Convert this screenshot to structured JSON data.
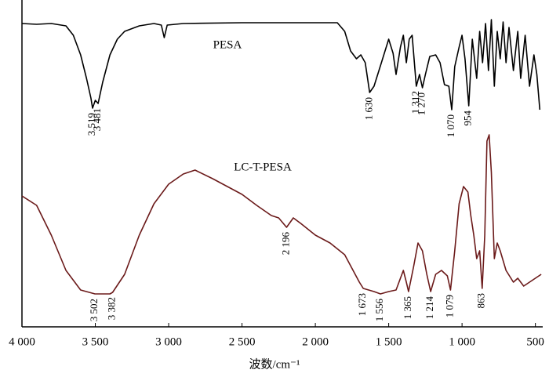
{
  "chart_data": {
    "type": "line",
    "xlabel": "波数/cm⁻¹",
    "xlim": [
      4000,
      450
    ],
    "xticks": [
      {
        "value": 4000,
        "label": "4 000"
      },
      {
        "value": 3500,
        "label": "3 500"
      },
      {
        "value": 3000,
        "label": "3 000"
      },
      {
        "value": 2500,
        "label": "2 500"
      },
      {
        "value": 2000,
        "label": "2 000"
      },
      {
        "value": 1500,
        "label": "1 500"
      },
      {
        "value": 1000,
        "label": "1 000"
      },
      500
    ],
    "ylim": [
      420,
      0
    ],
    "series": [
      {
        "name": "PESA",
        "color": "#000000",
        "x": [
          4000,
          3900,
          3800,
          3700,
          3650,
          3600,
          3560,
          3530,
          3519,
          3500,
          3481,
          3450,
          3400,
          3350,
          3300,
          3200,
          3100,
          3050,
          3030,
          3010,
          2900,
          2500,
          2000,
          1850,
          1800,
          1760,
          1720,
          1690,
          1660,
          1630,
          1600,
          1550,
          1500,
          1470,
          1450,
          1420,
          1400,
          1380,
          1360,
          1340,
          1312,
          1290,
          1270,
          1250,
          1220,
          1180,
          1150,
          1120,
          1090,
          1070,
          1050,
          1020,
          1000,
          980,
          954,
          930,
          900,
          880,
          860,
          840,
          820,
          800,
          780,
          760,
          740,
          720,
          700,
          680,
          650,
          620,
          600,
          570,
          540,
          510,
          490,
          470
        ],
        "values": [
          30,
          31,
          30,
          33,
          45,
          70,
          100,
          125,
          138,
          128,
          132,
          105,
          70,
          50,
          40,
          33,
          30,
          32,
          48,
          32,
          30,
          29,
          29,
          29,
          40,
          65,
          75,
          70,
          80,
          118,
          110,
          80,
          50,
          68,
          95,
          60,
          45,
          80,
          50,
          45,
          110,
          95,
          112,
          95,
          72,
          70,
          80,
          108,
          110,
          140,
          85,
          60,
          45,
          75,
          135,
          50,
          100,
          40,
          80,
          30,
          90,
          25,
          110,
          40,
          75,
          28,
          80,
          35,
          90,
          40,
          100,
          45,
          110,
          70,
          95,
          140
        ],
        "peaks": [
          {
            "label": "3 519",
            "value": 3519
          },
          {
            "label": "3 481",
            "value": 3481
          },
          {
            "label": "1 630",
            "value": 1630
          },
          {
            "label": "1 312",
            "value": 1312
          },
          {
            "label": "1 270",
            "value": 1270
          },
          {
            "label": "1 070",
            "value": 1070
          },
          {
            "label": "954",
            "value": 954
          }
        ]
      },
      {
        "name": "LC-T-PESA",
        "color": "#6b1a1a",
        "x": [
          4000,
          3900,
          3800,
          3700,
          3600,
          3502,
          3400,
          3382,
          3300,
          3200,
          3100,
          3000,
          2900,
          2820,
          2700,
          2600,
          2500,
          2400,
          2300,
          2250,
          2196,
          2150,
          2100,
          2000,
          1900,
          1800,
          1700,
          1673,
          1600,
          1556,
          1500,
          1450,
          1400,
          1380,
          1365,
          1330,
          1300,
          1270,
          1240,
          1214,
          1180,
          1140,
          1100,
          1079,
          1050,
          1020,
          990,
          960,
          940,
          920,
          900,
          880,
          863,
          845,
          830,
          815,
          800,
          780,
          760,
          740,
          700,
          650,
          620,
          580,
          500,
          460
        ],
        "values": [
          250,
          262,
          300,
          345,
          370,
          375,
          375,
          373,
          350,
          300,
          260,
          235,
          222,
          217,
          228,
          238,
          248,
          262,
          275,
          278,
          290,
          278,
          285,
          300,
          310,
          325,
          360,
          368,
          372,
          375,
          372,
          370,
          345,
          360,
          372,
          340,
          310,
          320,
          350,
          372,
          350,
          345,
          352,
          370,
          320,
          260,
          238,
          245,
          275,
          300,
          330,
          320,
          368,
          300,
          180,
          172,
          220,
          330,
          310,
          320,
          345,
          360,
          355,
          365,
          355,
          350
        ],
        "peaks": [
          {
            "label": "3 502",
            "value": 3502
          },
          {
            "label": "3 382",
            "value": 3382
          },
          {
            "label": "2 196",
            "value": 2196
          },
          {
            "label": "1 673",
            "value": 1673
          },
          {
            "label": "1 556",
            "value": 1556
          },
          {
            "label": "1 365",
            "value": 1365
          },
          {
            "label": "1 214",
            "value": 1214
          },
          {
            "label": "1 079",
            "value": 1079
          },
          {
            "label": "863",
            "value": 863
          }
        ]
      }
    ]
  }
}
